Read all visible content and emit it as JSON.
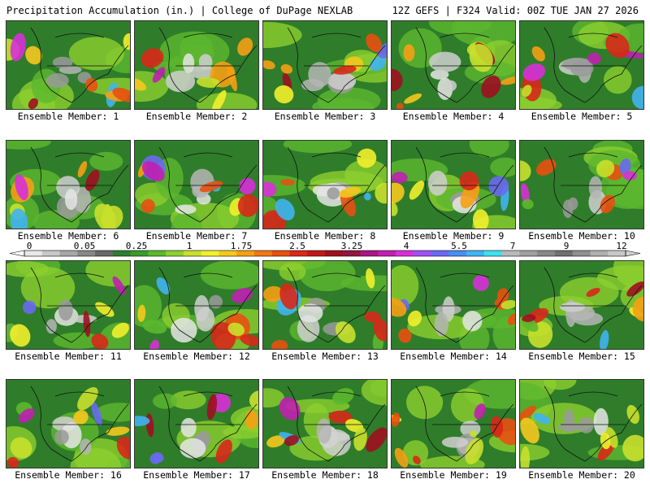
{
  "header": {
    "left": "Precipitation Accumulation (in.) | College of DuPage NEXLAB",
    "right": "12Z GEFS | F324 Valid: 00Z TUE JAN 27 2026"
  },
  "caption_prefix": "Ensemble Member:",
  "members": [
    "1",
    "2",
    "3",
    "4",
    "5",
    "6",
    "7",
    "8",
    "9",
    "10",
    "11",
    "12",
    "13",
    "14",
    "15",
    "16",
    "17",
    "18",
    "19",
    "20"
  ],
  "legend": {
    "labels": [
      "0",
      "0.05",
      "0.25",
      "1",
      "1.75",
      "2.5",
      "3.25",
      "4",
      "5.5",
      "7",
      "9",
      "12"
    ],
    "colors": [
      "#e8e8e8",
      "#c8c8c8",
      "#a8a8a8",
      "#888888",
      "#686868",
      "#2e7d32",
      "#3a9a2a",
      "#5cb82e",
      "#8ccf2e",
      "#c8e02c",
      "#f2f02c",
      "#f5c81e",
      "#f5a014",
      "#f07814",
      "#e85010",
      "#d82818",
      "#c01818",
      "#a01020",
      "#901840",
      "#a81880",
      "#c020b0",
      "#d830d8",
      "#a050f0",
      "#6a6af0",
      "#4a8ef0",
      "#40b4f0",
      "#40e0f0",
      "#b8b8b8",
      "#a0a0a0",
      "#888888",
      "#707070",
      "#909090",
      "#b0b0b0",
      "#c8c8c8"
    ]
  }
}
